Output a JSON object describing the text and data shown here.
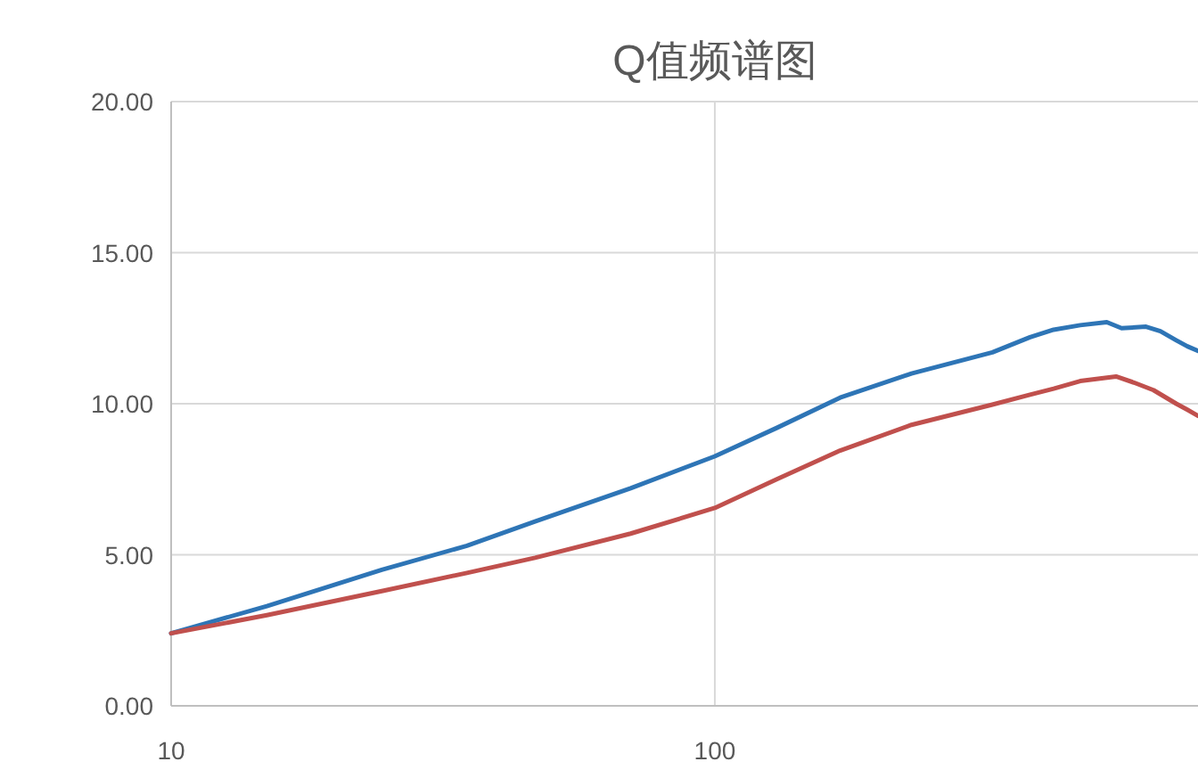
{
  "chart_data": {
    "type": "line",
    "title": "Q值频谱图",
    "log": "x",
    "grid": true,
    "line_style": "solid",
    "xlim": [
      10,
      774
    ],
    "xticks": [
      10,
      100
    ],
    "ylim": [
      0,
      20
    ],
    "yticks": [
      {
        "value": 0,
        "label": "0.00"
      },
      {
        "value": 5,
        "label": "5.00"
      },
      {
        "value": 10,
        "label": "10.00"
      },
      {
        "value": 15,
        "label": "15.00"
      },
      {
        "value": 20,
        "label": "20.00"
      }
    ],
    "series": [
      {
        "color": "#2e75b6",
        "x": [
          10,
          15,
          24.4,
          35,
          46.7,
          70,
          100,
          130,
          170,
          230,
          324,
          380,
          420,
          470,
          526,
          560,
          621,
          660,
          706,
          740,
          774
        ],
        "values": [
          2.4,
          3.3,
          4.5,
          5.3,
          6.1,
          7.2,
          8.26,
          9.2,
          10.2,
          11.0,
          11.7,
          12.2,
          12.45,
          12.6,
          12.7,
          12.5,
          12.55,
          12.4,
          12.1,
          11.9,
          11.75
        ]
      },
      {
        "color": "#c0504d",
        "x": [
          10,
          15,
          24.4,
          35,
          46.7,
          70,
          100,
          130,
          170,
          230,
          324,
          380,
          420,
          470,
          547,
          590,
          641,
          706,
          740,
          774
        ],
        "values": [
          2.4,
          3.0,
          3.8,
          4.4,
          4.9,
          5.7,
          6.55,
          7.5,
          8.45,
          9.3,
          9.97,
          10.3,
          10.5,
          10.75,
          10.9,
          10.7,
          10.45,
          10.0,
          9.8,
          9.6
        ]
      }
    ]
  }
}
